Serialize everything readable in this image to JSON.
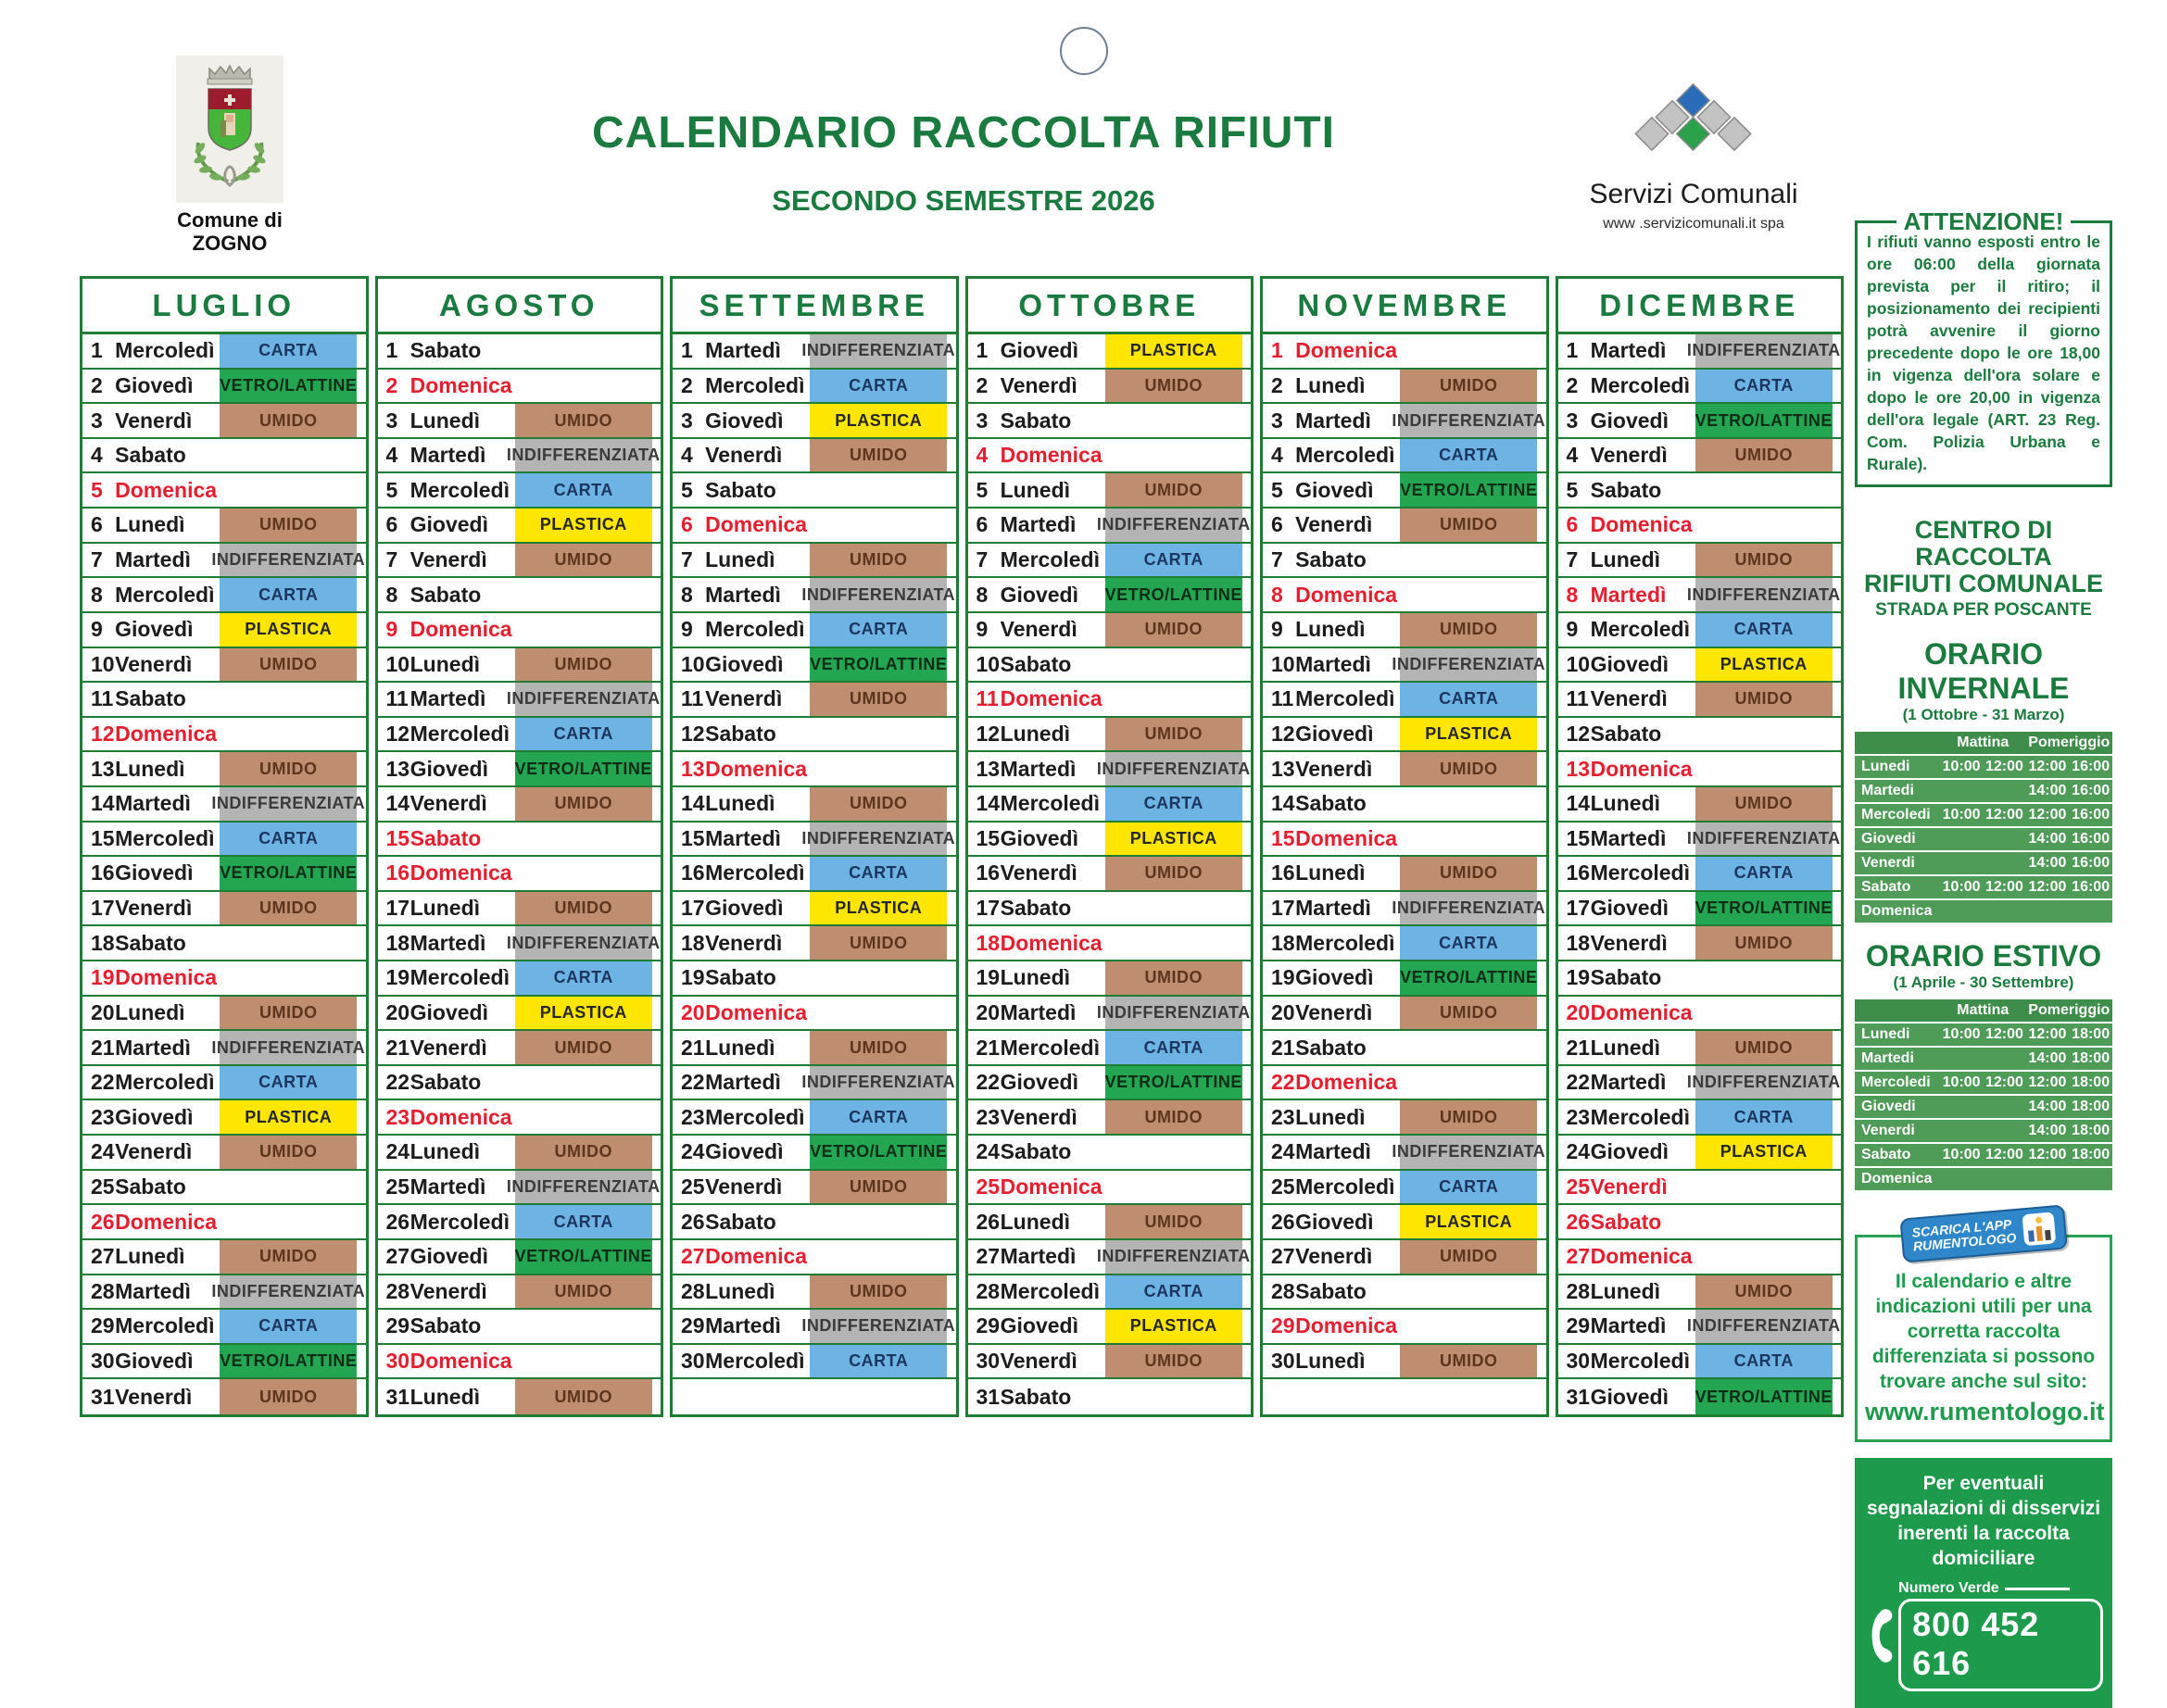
{
  "header": {
    "commune_line1": "Comune di",
    "commune_line2": "ZOGNO",
    "title": "CALENDARIO RACCOLTA RIFIUTI",
    "subtitle": "SECONDO SEMESTRE 2026",
    "provider_name": "Servizi Comunali",
    "provider_site": "www .servizicomunali.it   spa"
  },
  "legend": {
    "CARTA": {
      "bg": "#6db3e4",
      "fg": "#1c355e"
    },
    "VETRO/LATTINE": {
      "bg": "#23a552",
      "fg": "#0f2c17"
    },
    "UMIDO": {
      "bg": "#bf8e71",
      "fg": "#5d351c"
    },
    "INDIFFERENZIATA": {
      "bg": "#b4b4b4",
      "fg": "#3a3a3a"
    },
    "PLASTICA": {
      "bg": "#ffe600",
      "fg": "#262626"
    }
  },
  "colors": {
    "grid_green": "#1e7c35",
    "title_green": "#1a7a40",
    "red": "#e51f2f",
    "table_row_green": "#4f9b58",
    "table_header_green": "#3f8d4a",
    "box_green": "#1d9a4c"
  },
  "months": [
    {
      "name": "LUGLIO",
      "days": [
        [
          "Mercoledì",
          "CARTA",
          0
        ],
        [
          "Giovedì",
          "VETRO/LATTINE",
          0
        ],
        [
          "Venerdì",
          "UMIDO",
          0
        ],
        [
          "Sabato",
          "",
          0
        ],
        [
          "Domenica",
          "",
          1
        ],
        [
          "Lunedì",
          "UMIDO",
          0
        ],
        [
          "Martedì",
          "INDIFFERENZIATA",
          0
        ],
        [
          "Mercoledì",
          "CARTA",
          0
        ],
        [
          "Giovedì",
          "PLASTICA",
          0
        ],
        [
          "Venerdì",
          "UMIDO",
          0
        ],
        [
          "Sabato",
          "",
          0
        ],
        [
          "Domenica",
          "",
          1
        ],
        [
          "Lunedì",
          "UMIDO",
          0
        ],
        [
          "Martedì",
          "INDIFFERENZIATA",
          0
        ],
        [
          "Mercoledì",
          "CARTA",
          0
        ],
        [
          "Giovedì",
          "VETRO/LATTINE",
          0
        ],
        [
          "Venerdì",
          "UMIDO",
          0
        ],
        [
          "Sabato",
          "",
          0
        ],
        [
          "Domenica",
          "",
          1
        ],
        [
          "Lunedì",
          "UMIDO",
          0
        ],
        [
          "Martedì",
          "INDIFFERENZIATA",
          0
        ],
        [
          "Mercoledì",
          "CARTA",
          0
        ],
        [
          "Giovedì",
          "PLASTICA",
          0
        ],
        [
          "Venerdì",
          "UMIDO",
          0
        ],
        [
          "Sabato",
          "",
          0
        ],
        [
          "Domenica",
          "",
          1
        ],
        [
          "Lunedì",
          "UMIDO",
          0
        ],
        [
          "Martedì",
          "INDIFFERENZIATA",
          0
        ],
        [
          "Mercoledì",
          "CARTA",
          0
        ],
        [
          "Giovedì",
          "VETRO/LATTINE",
          0
        ],
        [
          "Venerdì",
          "UMIDO",
          0
        ]
      ]
    },
    {
      "name": "AGOSTO",
      "days": [
        [
          "Sabato",
          "",
          0
        ],
        [
          "Domenica",
          "",
          1
        ],
        [
          "Lunedì",
          "UMIDO",
          0
        ],
        [
          "Martedì",
          "INDIFFERENZIATA",
          0
        ],
        [
          "Mercoledì",
          "CARTA",
          0
        ],
        [
          "Giovedì",
          "PLASTICA",
          0
        ],
        [
          "Venerdì",
          "UMIDO",
          0
        ],
        [
          "Sabato",
          "",
          0
        ],
        [
          "Domenica",
          "",
          1
        ],
        [
          "Lunedì",
          "UMIDO",
          0
        ],
        [
          "Martedì",
          "INDIFFERENZIATA",
          0
        ],
        [
          "Mercoledì",
          "CARTA",
          0
        ],
        [
          "Giovedì",
          "VETRO/LATTINE",
          0
        ],
        [
          "Venerdì",
          "UMIDO",
          0
        ],
        [
          "Sabato",
          "",
          1
        ],
        [
          "Domenica",
          "",
          1
        ],
        [
          "Lunedì",
          "UMIDO",
          0
        ],
        [
          "Martedì",
          "INDIFFERENZIATA",
          0
        ],
        [
          "Mercoledì",
          "CARTA",
          0
        ],
        [
          "Giovedì",
          "PLASTICA",
          0
        ],
        [
          "Venerdì",
          "UMIDO",
          0
        ],
        [
          "Sabato",
          "",
          0
        ],
        [
          "Domenica",
          "",
          1
        ],
        [
          "Lunedì",
          "UMIDO",
          0
        ],
        [
          "Martedì",
          "INDIFFERENZIATA",
          0
        ],
        [
          "Mercoledì",
          "CARTA",
          0
        ],
        [
          "Giovedì",
          "VETRO/LATTINE",
          0
        ],
        [
          "Venerdì",
          "UMIDO",
          0
        ],
        [
          "Sabato",
          "",
          0
        ],
        [
          "Domenica",
          "",
          1
        ],
        [
          "Lunedì",
          "UMIDO",
          0
        ]
      ]
    },
    {
      "name": "SETTEMBRE",
      "days": [
        [
          "Martedì",
          "INDIFFERENZIATA",
          0
        ],
        [
          "Mercoledì",
          "CARTA",
          0
        ],
        [
          "Giovedì",
          "PLASTICA",
          0
        ],
        [
          "Venerdì",
          "UMIDO",
          0
        ],
        [
          "Sabato",
          "",
          0
        ],
        [
          "Domenica",
          "",
          1
        ],
        [
          "Lunedì",
          "UMIDO",
          0
        ],
        [
          "Martedì",
          "INDIFFERENZIATA",
          0
        ],
        [
          "Mercoledì",
          "CARTA",
          0
        ],
        [
          "Giovedì",
          "VETRO/LATTINE",
          0
        ],
        [
          "Venerdì",
          "UMIDO",
          0
        ],
        [
          "Sabato",
          "",
          0
        ],
        [
          "Domenica",
          "",
          1
        ],
        [
          "Lunedì",
          "UMIDO",
          0
        ],
        [
          "Martedì",
          "INDIFFERENZIATA",
          0
        ],
        [
          "Mercoledì",
          "CARTA",
          0
        ],
        [
          "Giovedì",
          "PLASTICA",
          0
        ],
        [
          "Venerdì",
          "UMIDO",
          0
        ],
        [
          "Sabato",
          "",
          0
        ],
        [
          "Domenica",
          "",
          1
        ],
        [
          "Lunedì",
          "UMIDO",
          0
        ],
        [
          "Martedì",
          "INDIFFERENZIATA",
          0
        ],
        [
          "Mercoledì",
          "CARTA",
          0
        ],
        [
          "Giovedì",
          "VETRO/LATTINE",
          0
        ],
        [
          "Venerdì",
          "UMIDO",
          0
        ],
        [
          "Sabato",
          "",
          0
        ],
        [
          "Domenica",
          "",
          1
        ],
        [
          "Lunedì",
          "UMIDO",
          0
        ],
        [
          "Martedì",
          "INDIFFERENZIATA",
          0
        ],
        [
          "Mercoledì",
          "CARTA",
          0
        ]
      ]
    },
    {
      "name": "OTTOBRE",
      "days": [
        [
          "Giovedì",
          "PLASTICA",
          0
        ],
        [
          "Venerdì",
          "UMIDO",
          0
        ],
        [
          "Sabato",
          "",
          0
        ],
        [
          "Domenica",
          "",
          1
        ],
        [
          "Lunedì",
          "UMIDO",
          0
        ],
        [
          "Martedì",
          "INDIFFERENZIATA",
          0
        ],
        [
          "Mercoledì",
          "CARTA",
          0
        ],
        [
          "Giovedì",
          "VETRO/LATTINE",
          0
        ],
        [
          "Venerdì",
          "UMIDO",
          0
        ],
        [
          "Sabato",
          "",
          0
        ],
        [
          "Domenica",
          "",
          1
        ],
        [
          "Lunedì",
          "UMIDO",
          0
        ],
        [
          "Martedì",
          "INDIFFERENZIATA",
          0
        ],
        [
          "Mercoledì",
          "CARTA",
          0
        ],
        [
          "Giovedì",
          "PLASTICA",
          0
        ],
        [
          "Venerdì",
          "UMIDO",
          0
        ],
        [
          "Sabato",
          "",
          0
        ],
        [
          "Domenica",
          "",
          1
        ],
        [
          "Lunedì",
          "UMIDO",
          0
        ],
        [
          "Martedì",
          "INDIFFERENZIATA",
          0
        ],
        [
          "Mercoledì",
          "CARTA",
          0
        ],
        [
          "Giovedì",
          "VETRO/LATTINE",
          0
        ],
        [
          "Venerdì",
          "UMIDO",
          0
        ],
        [
          "Sabato",
          "",
          0
        ],
        [
          "Domenica",
          "",
          1
        ],
        [
          "Lunedì",
          "UMIDO",
          0
        ],
        [
          "Martedì",
          "INDIFFERENZIATA",
          0
        ],
        [
          "Mercoledì",
          "CARTA",
          0
        ],
        [
          "Giovedì",
          "PLASTICA",
          0
        ],
        [
          "Venerdì",
          "UMIDO",
          0
        ],
        [
          "Sabato",
          "",
          0
        ]
      ]
    },
    {
      "name": "NOVEMBRE",
      "days": [
        [
          "Domenica",
          "",
          1
        ],
        [
          "Lunedì",
          "UMIDO",
          0
        ],
        [
          "Martedì",
          "INDIFFERENZIATA",
          0
        ],
        [
          "Mercoledì",
          "CARTA",
          0
        ],
        [
          "Giovedì",
          "VETRO/LATTINE",
          0
        ],
        [
          "Venerdì",
          "UMIDO",
          0
        ],
        [
          "Sabato",
          "",
          0
        ],
        [
          "Domenica",
          "",
          1
        ],
        [
          "Lunedì",
          "UMIDO",
          0
        ],
        [
          "Martedì",
          "INDIFFERENZIATA",
          0
        ],
        [
          "Mercoledì",
          "CARTA",
          0
        ],
        [
          "Giovedì",
          "PLASTICA",
          0
        ],
        [
          "Venerdì",
          "UMIDO",
          0
        ],
        [
          "Sabato",
          "",
          0
        ],
        [
          "Domenica",
          "",
          1
        ],
        [
          "Lunedì",
          "UMIDO",
          0
        ],
        [
          "Martedì",
          "INDIFFERENZIATA",
          0
        ],
        [
          "Mercoledì",
          "CARTA",
          0
        ],
        [
          "Giovedì",
          "VETRO/LATTINE",
          0
        ],
        [
          "Venerdì",
          "UMIDO",
          0
        ],
        [
          "Sabato",
          "",
          0
        ],
        [
          "Domenica",
          "",
          1
        ],
        [
          "Lunedì",
          "UMIDO",
          0
        ],
        [
          "Martedì",
          "INDIFFERENZIATA",
          0
        ],
        [
          "Mercoledì",
          "CARTA",
          0
        ],
        [
          "Giovedì",
          "PLASTICA",
          0
        ],
        [
          "Venerdì",
          "UMIDO",
          0
        ],
        [
          "Sabato",
          "",
          0
        ],
        [
          "Domenica",
          "",
          1
        ],
        [
          "Lunedì",
          "UMIDO",
          0
        ]
      ]
    },
    {
      "name": "DICEMBRE",
      "days": [
        [
          "Martedì",
          "INDIFFERENZIATA",
          0
        ],
        [
          "Mercoledì",
          "CARTA",
          0
        ],
        [
          "Giovedì",
          "VETRO/LATTINE",
          0
        ],
        [
          "Venerdì",
          "UMIDO",
          0
        ],
        [
          "Sabato",
          "",
          0
        ],
        [
          "Domenica",
          "",
          1
        ],
        [
          "Lunedì",
          "UMIDO",
          0
        ],
        [
          "Martedì",
          "INDIFFERENZIATA",
          1
        ],
        [
          "Mercoledì",
          "CARTA",
          0
        ],
        [
          "Giovedì",
          "PLASTICA",
          0
        ],
        [
          "Venerdì",
          "UMIDO",
          0
        ],
        [
          "Sabato",
          "",
          0
        ],
        [
          "Domenica",
          "",
          1
        ],
        [
          "Lunedì",
          "UMIDO",
          0
        ],
        [
          "Martedì",
          "INDIFFERENZIATA",
          0
        ],
        [
          "Mercoledì",
          "CARTA",
          0
        ],
        [
          "Giovedì",
          "VETRO/LATTINE",
          0
        ],
        [
          "Venerdì",
          "UMIDO",
          0
        ],
        [
          "Sabato",
          "",
          0
        ],
        [
          "Domenica",
          "",
          1
        ],
        [
          "Lunedì",
          "UMIDO",
          0
        ],
        [
          "Martedì",
          "INDIFFERENZIATA",
          0
        ],
        [
          "Mercoledì",
          "CARTA",
          0
        ],
        [
          "Giovedì",
          "PLASTICA",
          0
        ],
        [
          "Venerdì",
          "",
          1
        ],
        [
          "Sabato",
          "",
          1
        ],
        [
          "Domenica",
          "",
          1
        ],
        [
          "Lunedì",
          "UMIDO",
          0
        ],
        [
          "Martedì",
          "INDIFFERENZIATA",
          0
        ],
        [
          "Mercoledì",
          "CARTA",
          0
        ],
        [
          "Giovedì",
          "VETRO/LATTINE",
          0
        ]
      ]
    }
  ],
  "sidebar": {
    "attenzione_title": "ATTENZIONE!",
    "attenzione_body": "I rifiuti vanno esposti entro le ore 06:00 della giornata prevista per il ritiro; il posizionamento dei recipienti potrà avvenire il giorno precedente dopo le ore 18,00 in vigenza dell'ora solare e dopo le ore 20,00 in vigenza dell'ora legale (ART. 23 Reg. Com. Polizia Urbana e Rurale).",
    "centro_title1": "CENTRO DI RACCOLTA",
    "centro_title2": "RIFIUTI COMUNALE",
    "centro_subtitle": "STRADA PER POSCANTE",
    "col_mattina": "Mattina",
    "col_pomeriggio": "Pomeriggio",
    "invernale": {
      "title": "ORARIO INVERNALE",
      "subtitle": "(1 Ottobre - 31 Marzo)",
      "rows": [
        [
          "Lunedi",
          "10:00",
          "12:00",
          "12:00",
          "16:00"
        ],
        [
          "Martedi",
          "",
          "",
          "14:00",
          "16:00"
        ],
        [
          "Mercoledi",
          "10:00",
          "12:00",
          "12:00",
          "16:00"
        ],
        [
          "Giovedi",
          "",
          "",
          "14:00",
          "16:00"
        ],
        [
          "Venerdi",
          "",
          "",
          "14:00",
          "16:00"
        ],
        [
          "Sabato",
          "10:00",
          "12:00",
          "12:00",
          "16:00"
        ],
        [
          "Domenica",
          "",
          "",
          "",
          ""
        ]
      ]
    },
    "estivo": {
      "title": "ORARIO ESTIVO",
      "subtitle": "(1 Aprile - 30 Settembre)",
      "rows": [
        [
          "Lunedi",
          "10:00",
          "12:00",
          "12:00",
          "18:00"
        ],
        [
          "Martedi",
          "",
          "",
          "14:00",
          "18:00"
        ],
        [
          "Mercoledi",
          "10:00",
          "12:00",
          "12:00",
          "18:00"
        ],
        [
          "Giovedi",
          "",
          "",
          "14:00",
          "18:00"
        ],
        [
          "Venerdi",
          "",
          "",
          "14:00",
          "18:00"
        ],
        [
          "Sabato",
          "10:00",
          "12:00",
          "12:00",
          "18:00"
        ],
        [
          "Domenica",
          "",
          "",
          "",
          ""
        ]
      ]
    },
    "app_badge_line1": "SCARICA L'APP",
    "app_badge_line2": "RUMENTOLOGO",
    "app_text": "Il calendario e altre indicazioni utili per una corretta raccolta differenziata si possono trovare anche sul sito:",
    "app_site": "www.rumentologo.it",
    "segnala_text": "Per eventuali segnalazioni di disservizi inerenti la raccolta domiciliare",
    "numero_label": "Numero Verde",
    "numero_value": "800 452 616"
  }
}
